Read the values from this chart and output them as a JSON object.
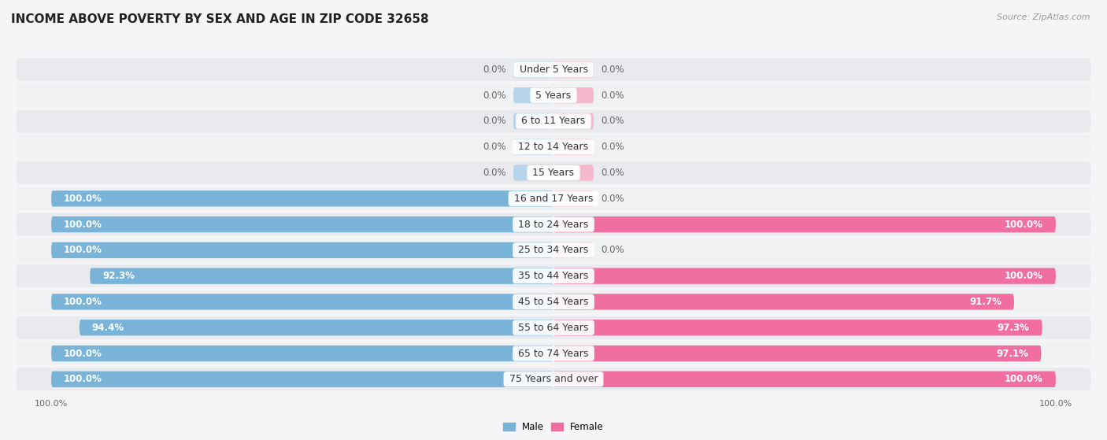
{
  "title": "INCOME ABOVE POVERTY BY SEX AND AGE IN ZIP CODE 32658",
  "source": "Source: ZipAtlas.com",
  "categories": [
    "Under 5 Years",
    "5 Years",
    "6 to 11 Years",
    "12 to 14 Years",
    "15 Years",
    "16 and 17 Years",
    "18 to 24 Years",
    "25 to 34 Years",
    "35 to 44 Years",
    "45 to 54 Years",
    "55 to 64 Years",
    "65 to 74 Years",
    "75 Years and over"
  ],
  "male_values": [
    0.0,
    0.0,
    0.0,
    0.0,
    0.0,
    100.0,
    100.0,
    100.0,
    92.3,
    100.0,
    94.4,
    100.0,
    100.0
  ],
  "female_values": [
    0.0,
    0.0,
    0.0,
    0.0,
    0.0,
    0.0,
    100.0,
    0.0,
    100.0,
    91.7,
    97.3,
    97.1,
    100.0
  ],
  "male_color": "#7ab3d8",
  "female_color": "#f06ea0",
  "male_color_light": "#b8d4eb",
  "female_color_light": "#f5b8cf",
  "row_bg_color": "#e8eaed",
  "row_alt_color": "#f0f1f3",
  "fig_bg_color": "#f5f5f7",
  "title_fontsize": 11,
  "label_fontsize": 8.5,
  "cat_fontsize": 9,
  "tick_fontsize": 8,
  "source_fontsize": 8
}
